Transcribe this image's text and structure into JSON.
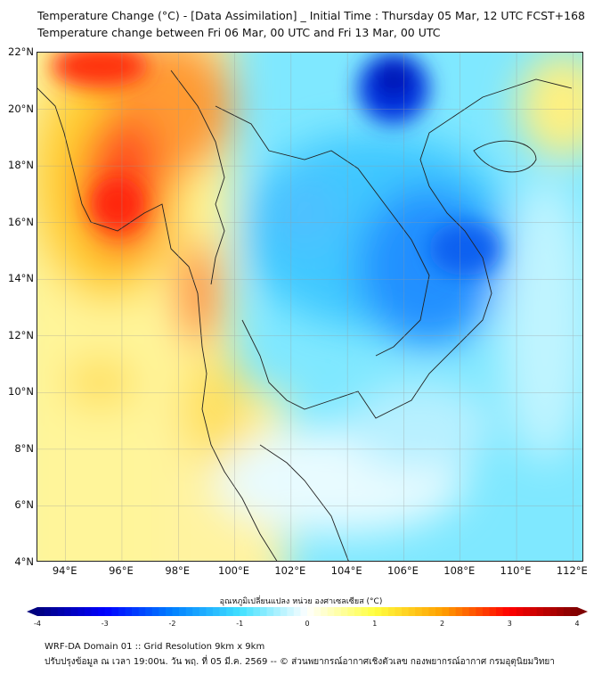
{
  "header": {
    "title": "Temperature Change (°C) - [Data Assimilation] _ Initial Time : Thursday 05 Mar, 12 UTC FCST+168",
    "subtitle": "Temperature change between Fri 06 Mar, 00 UTC and Fri 13 Mar, 00 UTC"
  },
  "map": {
    "lat_labels": [
      "22°N",
      "20°N",
      "18°N",
      "16°N",
      "14°N",
      "12°N",
      "10°N",
      "8°N",
      "6°N",
      "4°N"
    ],
    "lat_values": [
      22,
      20,
      18,
      16,
      14,
      12,
      10,
      8,
      6,
      4
    ],
    "lon_labels": [
      "94°E",
      "96°E",
      "98°E",
      "100°E",
      "102°E",
      "104°E",
      "106°E",
      "108°E",
      "110°E",
      "112°E"
    ],
    "lon_values": [
      94,
      96,
      98,
      100,
      102,
      104,
      106,
      108,
      110,
      112
    ],
    "extent": {
      "lon": [
        93,
        112.4
      ],
      "lat": [
        4,
        22
      ]
    }
  },
  "colorbar": {
    "title": "อุณหภูมิเปลี่ยนแปลง หน่วย องศาเซลเซียส (°C)",
    "ticks": [
      "-4",
      "-3",
      "-2",
      "-1",
      "0",
      "1",
      "2",
      "3",
      "4"
    ],
    "range": [
      -4,
      4
    ],
    "step": 0.1,
    "colors": [
      "#00007f",
      "#0000ff",
      "#0080ff",
      "#40e0ff",
      "#ffffff",
      "#ffff40",
      "#ffa000",
      "#ff0000",
      "#7f0000"
    ]
  },
  "footer": {
    "line1": "WRF-DA Domain 01 :: Grid Resolution 9km x 9km",
    "line2": "ปรับปรุงข้อมูล ณ เวลา 19:00น. วัน พฤ. ที่ 05 มี.ค. 2569 -- © ส่วนพยากรณ์อากาศเชิงตัวเลข กองพยากรณ์อากาศ กรมอุตุนิยมวิทยา"
  }
}
